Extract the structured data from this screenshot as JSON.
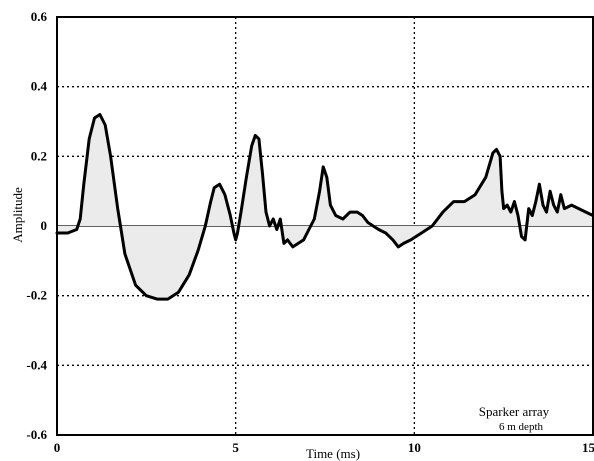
{
  "chart_data": {
    "type": "line",
    "title": "",
    "xlabel": "Time (ms)",
    "ylabel": "Amplitude",
    "xlim": [
      0,
      15
    ],
    "ylim": [
      -0.6,
      0.6
    ],
    "grid": true,
    "grid_style": "dotted",
    "x_ticks": [
      0,
      5,
      10,
      15
    ],
    "x_tick_labels": [
      "0",
      "5",
      "10",
      "15"
    ],
    "y_ticks": [
      -0.6,
      -0.4,
      -0.2,
      0,
      0.2,
      0.4,
      0.6
    ],
    "y_tick_labels": [
      "-0.6",
      "-0.4",
      "-0.2",
      "0",
      "0.2",
      "0.4",
      "0.6"
    ],
    "annotation": {
      "line1": "Sparker array",
      "line2": "6 m  depth"
    },
    "series": [
      {
        "color": "#000000",
        "x": [
          0,
          0.3,
          0.55,
          0.65,
          0.75,
          0.9,
          1.05,
          1.2,
          1.35,
          1.5,
          1.7,
          1.9,
          2.2,
          2.5,
          2.8,
          3.1,
          3.4,
          3.7,
          3.95,
          4.15,
          4.3,
          4.4,
          4.55,
          4.7,
          4.85,
          4.95,
          5.0,
          5.05,
          5.15,
          5.3,
          5.45,
          5.55,
          5.65,
          5.75,
          5.85,
          5.95,
          6.05,
          6.15,
          6.25,
          6.35,
          6.45,
          6.6,
          6.75,
          6.9,
          7.05,
          7.2,
          7.35,
          7.45,
          7.55,
          7.65,
          7.8,
          8.0,
          8.2,
          8.4,
          8.55,
          8.7,
          8.85,
          9.0,
          9.2,
          9.4,
          9.55,
          9.7,
          9.9,
          10.2,
          10.5,
          10.8,
          11.1,
          11.4,
          11.7,
          12.0,
          12.2,
          12.3,
          12.4,
          12.45,
          12.5,
          12.6,
          12.7,
          12.8,
          12.9,
          13.0,
          13.1,
          13.2,
          13.3,
          13.4,
          13.5,
          13.6,
          13.7,
          13.8,
          13.9,
          14.0,
          14.1,
          14.2,
          14.4,
          14.6,
          14.8,
          15.0
        ],
        "y": [
          -0.02,
          -0.02,
          -0.01,
          0.02,
          0.12,
          0.25,
          0.31,
          0.32,
          0.29,
          0.2,
          0.05,
          -0.08,
          -0.17,
          -0.2,
          -0.21,
          -0.21,
          -0.19,
          -0.14,
          -0.07,
          0.0,
          0.07,
          0.11,
          0.12,
          0.09,
          0.03,
          -0.02,
          -0.04,
          -0.02,
          0.04,
          0.14,
          0.23,
          0.26,
          0.25,
          0.15,
          0.04,
          0.0,
          0.02,
          -0.01,
          0.02,
          -0.05,
          -0.04,
          -0.06,
          -0.05,
          -0.04,
          -0.01,
          0.02,
          0.1,
          0.17,
          0.14,
          0.06,
          0.03,
          0.02,
          0.04,
          0.04,
          0.03,
          0.01,
          0.0,
          -0.01,
          -0.02,
          -0.04,
          -0.06,
          -0.05,
          -0.04,
          -0.02,
          0.0,
          0.04,
          0.07,
          0.07,
          0.09,
          0.14,
          0.21,
          0.22,
          0.2,
          0.1,
          0.05,
          0.06,
          0.04,
          0.07,
          0.03,
          -0.03,
          -0.04,
          0.05,
          0.03,
          0.07,
          0.12,
          0.06,
          0.04,
          0.1,
          0.06,
          0.04,
          0.09,
          0.05,
          0.06,
          0.05,
          0.04,
          0.03
        ]
      }
    ]
  }
}
